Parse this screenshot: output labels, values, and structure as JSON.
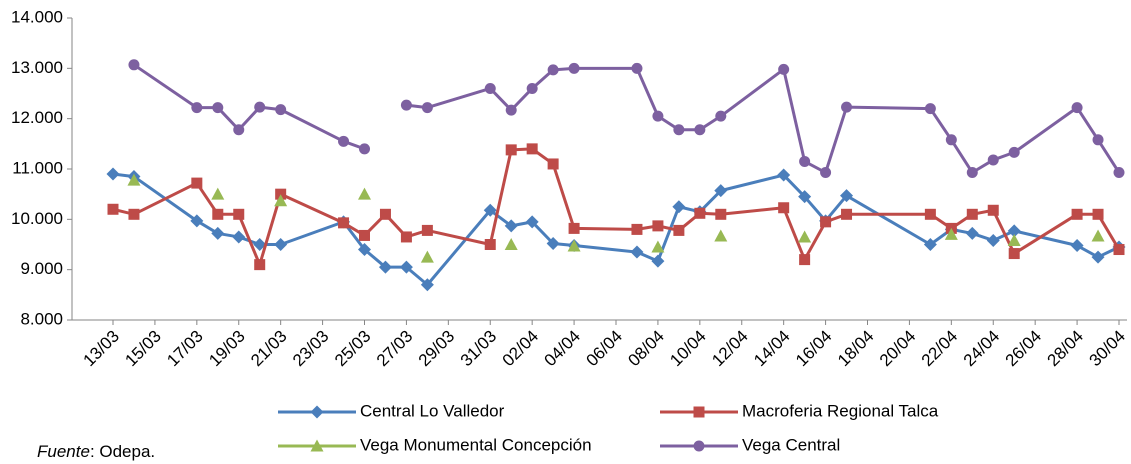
{
  "chart_data": {
    "type": "line",
    "x": [
      "13/03",
      "14/03",
      "17/03",
      "18/03",
      "19/03",
      "20/03",
      "21/03",
      "24/03",
      "25/03",
      "26/03",
      "27/03",
      "28/03",
      "31/03",
      "01/04",
      "02/04",
      "03/04",
      "04/04",
      "07/04",
      "08/04",
      "09/04",
      "10/04",
      "11/04",
      "14/04",
      "15/04",
      "16/04",
      "17/04",
      "21/04",
      "22/04",
      "23/04",
      "24/04",
      "25/04",
      "28/04",
      "29/04",
      "30/04"
    ],
    "xticks": [
      "13/03",
      "15/03",
      "17/03",
      "19/03",
      "21/03",
      "23/03",
      "25/03",
      "27/03",
      "29/03",
      "31/03",
      "02/04",
      "04/04",
      "06/04",
      "08/04",
      "10/04",
      "12/04",
      "14/04",
      "16/04",
      "18/04",
      "20/04",
      "22/04",
      "24/04",
      "26/04",
      "28/04",
      "30/04"
    ],
    "ylim": [
      8,
      14
    ],
    "yticks": [
      {
        "value": 8,
        "label": "8.000"
      },
      {
        "value": 9,
        "label": "9.000"
      },
      {
        "value": 10,
        "label": "10.000"
      },
      {
        "value": 11,
        "label": "11.000"
      },
      {
        "value": 12,
        "label": "12.000"
      },
      {
        "value": 13,
        "label": "13.000"
      },
      {
        "value": 14,
        "label": "14.000"
      }
    ],
    "grid": false,
    "series": [
      {
        "name": "Central Lo Valledor",
        "color": "#4a7ebb",
        "marker": "diamond",
        "values": [
          10.9,
          10.85,
          9.97,
          9.72,
          9.65,
          9.5,
          9.5,
          9.95,
          9.4,
          9.05,
          9.05,
          8.7,
          10.18,
          9.87,
          9.95,
          9.52,
          9.48,
          9.35,
          9.17,
          10.25,
          10.15,
          10.57,
          10.88,
          10.45,
          9.97,
          10.47,
          9.5,
          9.8,
          9.72,
          9.58,
          9.77,
          9.48,
          9.25,
          9.45
        ]
      },
      {
        "name": "Macroferia Regional Talca",
        "color": "#be4b48",
        "marker": "square",
        "values": [
          10.2,
          10.1,
          10.72,
          10.1,
          10.1,
          9.1,
          10.5,
          9.93,
          9.68,
          10.1,
          9.65,
          9.78,
          9.5,
          11.38,
          11.4,
          11.1,
          9.82,
          9.8,
          9.87,
          9.78,
          10.12,
          10.1,
          10.23,
          9.2,
          9.95,
          10.1,
          10.1,
          9.82,
          10.1,
          10.18,
          9.32,
          10.1,
          10.1,
          9.4
        ]
      },
      {
        "name": "Vega Monumental Concepción",
        "color": "#98b954",
        "marker": "triangle",
        "values": [
          null,
          10.78,
          null,
          10.5,
          null,
          null,
          10.37,
          null,
          10.5,
          null,
          null,
          9.25,
          null,
          9.5,
          null,
          null,
          9.47,
          null,
          9.45,
          null,
          null,
          9.67,
          null,
          9.65,
          null,
          null,
          null,
          9.7,
          null,
          null,
          9.58,
          null,
          9.67,
          null
        ]
      },
      {
        "name": "Vega Central",
        "color": "#7d60a0",
        "marker": "circle",
        "values": [
          null,
          13.07,
          12.22,
          12.22,
          11.78,
          12.23,
          12.18,
          11.55,
          11.4,
          null,
          12.27,
          12.22,
          12.6,
          12.17,
          12.6,
          12.97,
          13.0,
          13.0,
          12.05,
          11.78,
          11.78,
          12.05,
          12.98,
          11.15,
          10.93,
          12.23,
          12.2,
          11.58,
          10.93,
          11.18,
          11.33,
          12.22,
          11.58,
          10.93
        ]
      }
    ],
    "source": {
      "label": "Fuente",
      "text": ": Odepa."
    }
  }
}
